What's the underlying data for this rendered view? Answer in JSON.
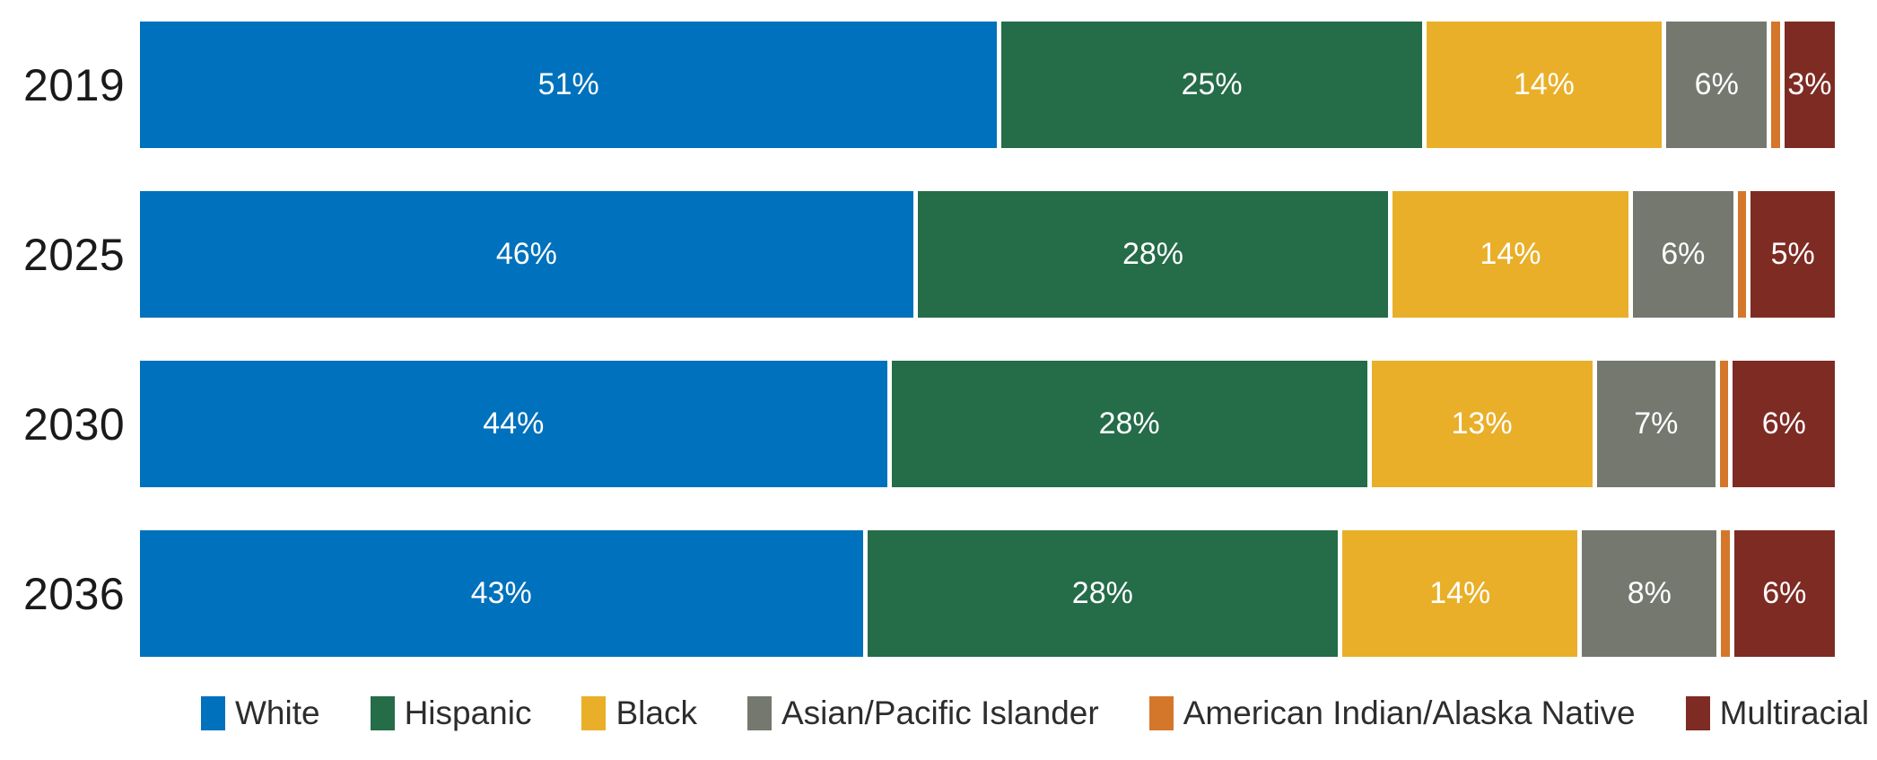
{
  "page": {
    "background_color": "#FFFFFF"
  },
  "chart_data": {
    "type": "bar",
    "variant": "stacked-horizontal",
    "unit": "percent",
    "title": "",
    "xlabel": "",
    "ylabel": "",
    "axis": {
      "x_min": 0,
      "x_max": 100,
      "gridlines": false,
      "value_axis_hidden": true
    },
    "legend_position": "bottom",
    "value_labels": "inside-center",
    "value_label_color": "#FFFFFF",
    "category_label_color": "#1A1A1A",
    "legend_text_color": "#2D2D2D",
    "segment_gap_color": "#FFFFFF",
    "categories": [
      "2019",
      "2025",
      "2030",
      "2036"
    ],
    "series": [
      {
        "name": "White",
        "color": "#0071BC",
        "values": [
          51,
          46,
          44,
          43
        ],
        "display_labels": [
          "51%",
          "46%",
          "44%",
          "43%"
        ]
      },
      {
        "name": "Hispanic",
        "color": "#256C49",
        "values": [
          25,
          28,
          28,
          28
        ],
        "display_labels": [
          "25%",
          "28%",
          "28%",
          "28%"
        ]
      },
      {
        "name": "Black",
        "color": "#E9AF29",
        "values": [
          14,
          14,
          13,
          14
        ],
        "display_labels": [
          "14%",
          "14%",
          "13%",
          "14%"
        ]
      },
      {
        "name": "Asian/Pacific Islander",
        "color": "#75786F",
        "values": [
          6,
          6,
          7,
          8
        ],
        "display_labels": [
          "6%",
          "6%",
          "7%",
          "8%"
        ]
      },
      {
        "name": "American Indian/Alaska Native",
        "color": "#D4772B",
        "values": [
          0.5,
          0.5,
          0.5,
          0.5
        ],
        "display_labels": [
          "",
          "",
          "",
          ""
        ],
        "label_hidden": true
      },
      {
        "name": "Multiracial",
        "color": "#7E2B24",
        "values": [
          3,
          5,
          6,
          6
        ],
        "display_labels": [
          "3%",
          "5%",
          "6%",
          "6%"
        ]
      }
    ]
  }
}
